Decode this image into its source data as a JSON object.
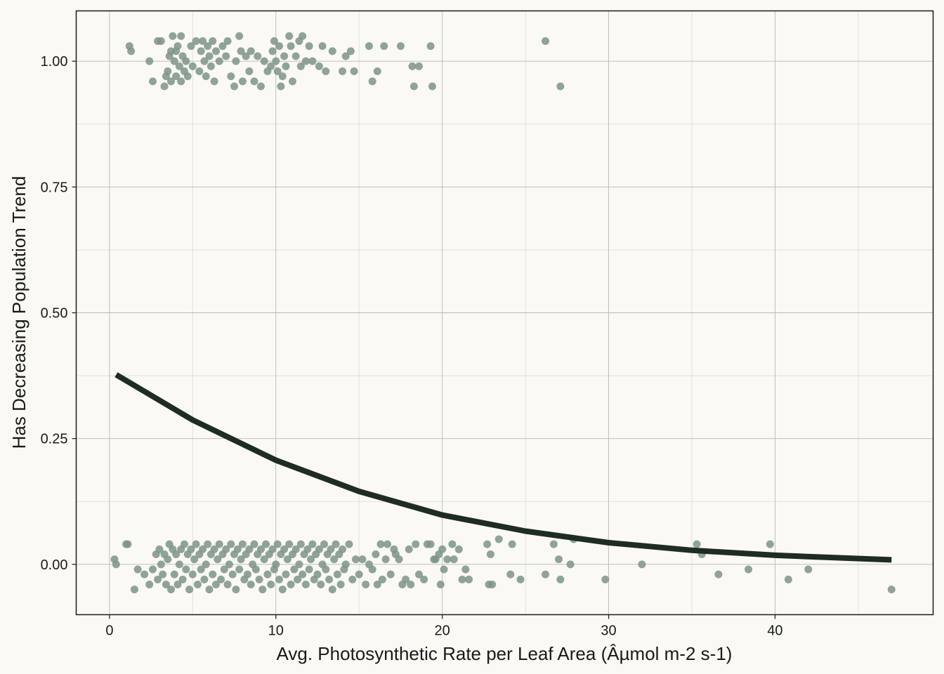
{
  "chart_data": {
    "type": "scatter",
    "title": "",
    "xlabel": "Avg. Photosynthetic Rate per Leaf Area (Âµmol m-2 s-1)",
    "ylabel": "Has Decreasing Population Trend",
    "xlim": [
      -2,
      49.5
    ],
    "ylim": [
      -0.1,
      1.1
    ],
    "x_ticks": [
      0,
      10,
      20,
      30,
      40
    ],
    "y_ticks": [
      0.0,
      0.25,
      0.5,
      0.75,
      1.0
    ],
    "x_tick_labels": [
      "0",
      "10",
      "20",
      "30",
      "40"
    ],
    "y_tick_labels": [
      "0.00",
      "0.25",
      "0.50",
      "0.75",
      "1.00"
    ],
    "grid": true,
    "legend": "none",
    "colors": {
      "background": "#faf9f4",
      "points": "#7d9486",
      "curve": "#1e2c22",
      "grid_major": "#b9b9b5",
      "grid_minor": "#dcdcd6",
      "frame": "#1a1a1a"
    },
    "points_y1": [
      [
        1.2,
        1.03
      ],
      [
        1.3,
        1.02
      ],
      [
        2.4,
        1.0
      ],
      [
        2.6,
        0.96
      ],
      [
        2.9,
        1.04
      ],
      [
        3.1,
        1.04
      ],
      [
        3.3,
        0.95
      ],
      [
        3.4,
        0.97
      ],
      [
        3.5,
        0.98
      ],
      [
        3.6,
        1.01
      ],
      [
        3.7,
        1.02
      ],
      [
        3.7,
        0.96
      ],
      [
        3.8,
        1.05
      ],
      [
        3.9,
        1.0
      ],
      [
        4.0,
        1.02
      ],
      [
        4.0,
        0.97
      ],
      [
        4.1,
        1.03
      ],
      [
        4.2,
        0.99
      ],
      [
        4.3,
        1.05
      ],
      [
        4.3,
        0.96
      ],
      [
        4.4,
        1.01
      ],
      [
        4.5,
        0.98
      ],
      [
        4.6,
        1.0
      ],
      [
        4.7,
        0.97
      ],
      [
        4.9,
        1.03
      ],
      [
        5.0,
        0.99
      ],
      [
        5.2,
        1.04
      ],
      [
        5.4,
        0.98
      ],
      [
        5.5,
        1.02
      ],
      [
        5.6,
        1.04
      ],
      [
        5.7,
        1.0
      ],
      [
        5.8,
        0.97
      ],
      [
        5.9,
        1.03
      ],
      [
        6.0,
        1.01
      ],
      [
        6.1,
        0.99
      ],
      [
        6.2,
        1.04
      ],
      [
        6.3,
        0.96
      ],
      [
        6.4,
        1.02
      ],
      [
        6.6,
        1.0
      ],
      [
        6.8,
        1.03
      ],
      [
        7.0,
        1.01
      ],
      [
        7.1,
        1.04
      ],
      [
        7.3,
        0.97
      ],
      [
        7.5,
        0.95
      ],
      [
        7.6,
        1.0
      ],
      [
        7.8,
        1.05
      ],
      [
        7.9,
        1.02
      ],
      [
        8.0,
        0.96
      ],
      [
        8.2,
        1.01
      ],
      [
        8.4,
        0.98
      ],
      [
        8.5,
        1.02
      ],
      [
        8.7,
        0.96
      ],
      [
        8.9,
        1.01
      ],
      [
        9.1,
        0.95
      ],
      [
        9.3,
        1.0
      ],
      [
        9.5,
        0.98
      ],
      [
        9.7,
        0.99
      ],
      [
        9.8,
        1.02
      ],
      [
        9.9,
        1.04
      ],
      [
        10.0,
        1.0
      ],
      [
        10.1,
        0.98
      ],
      [
        10.2,
        1.03
      ],
      [
        10.3,
        0.95
      ],
      [
        10.4,
        0.97
      ],
      [
        10.5,
        1.01
      ],
      [
        10.6,
        0.99
      ],
      [
        10.8,
        1.05
      ],
      [
        10.9,
        1.03
      ],
      [
        11.0,
        0.96
      ],
      [
        11.2,
        1.01
      ],
      [
        11.4,
        1.04
      ],
      [
        11.5,
        0.99
      ],
      [
        11.6,
        1.05
      ],
      [
        11.8,
        1.0
      ],
      [
        12.0,
        1.03
      ],
      [
        12.2,
        1.0
      ],
      [
        12.6,
        0.99
      ],
      [
        12.8,
        1.03
      ],
      [
        13.0,
        0.98
      ],
      [
        13.4,
        1.02
      ],
      [
        14.0,
        0.98
      ],
      [
        14.2,
        1.01
      ],
      [
        14.5,
        1.02
      ],
      [
        14.7,
        0.98
      ],
      [
        15.6,
        1.03
      ],
      [
        15.8,
        0.96
      ],
      [
        16.1,
        0.98
      ],
      [
        16.5,
        1.03
      ],
      [
        17.5,
        1.03
      ],
      [
        18.2,
        0.99
      ],
      [
        18.3,
        0.95
      ],
      [
        18.6,
        0.99
      ],
      [
        19.3,
        1.03
      ],
      [
        19.4,
        0.95
      ],
      [
        26.2,
        1.04
      ],
      [
        27.1,
        0.95
      ]
    ],
    "points_y0": [
      [
        0.3,
        0.01
      ],
      [
        0.4,
        0.0
      ],
      [
        1.0,
        0.04
      ],
      [
        1.1,
        0.04
      ],
      [
        1.5,
        -0.05
      ],
      [
        1.7,
        -0.01
      ],
      [
        2.1,
        -0.02
      ],
      [
        2.4,
        -0.04
      ],
      [
        2.6,
        -0.01
      ],
      [
        2.8,
        0.02
      ],
      [
        2.9,
        -0.03
      ],
      [
        3.0,
        0.03
      ],
      [
        3.1,
        0.0
      ],
      [
        3.2,
        -0.02
      ],
      [
        3.3,
        0.02
      ],
      [
        3.4,
        -0.04
      ],
      [
        3.5,
        0.01
      ],
      [
        3.6,
        0.04
      ],
      [
        3.7,
        -0.05
      ],
      [
        3.8,
        0.03
      ],
      [
        3.9,
        -0.02
      ],
      [
        4.0,
        0.02
      ],
      [
        4.1,
        -0.04
      ],
      [
        4.2,
        0.0
      ],
      [
        4.3,
        0.03
      ],
      [
        4.4,
        -0.03
      ],
      [
        4.5,
        0.04
      ],
      [
        4.6,
        -0.01
      ],
      [
        4.7,
        0.02
      ],
      [
        4.8,
        -0.05
      ],
      [
        4.9,
        0.03
      ],
      [
        5.0,
        -0.02
      ],
      [
        5.1,
        0.01
      ],
      [
        5.2,
        0.04
      ],
      [
        5.3,
        -0.04
      ],
      [
        5.4,
        0.02
      ],
      [
        5.5,
        -0.01
      ],
      [
        5.6,
        0.03
      ],
      [
        5.7,
        -0.03
      ],
      [
        5.8,
        0.0
      ],
      [
        5.9,
        0.04
      ],
      [
        6.0,
        -0.05
      ],
      [
        6.1,
        0.02
      ],
      [
        6.2,
        -0.02
      ],
      [
        6.3,
        0.03
      ],
      [
        6.4,
        -0.04
      ],
      [
        6.5,
        0.01
      ],
      [
        6.6,
        0.04
      ],
      [
        6.7,
        -0.03
      ],
      [
        6.8,
        0.02
      ],
      [
        6.9,
        -0.01
      ],
      [
        7.0,
        0.03
      ],
      [
        7.1,
        -0.04
      ],
      [
        7.2,
        0.0
      ],
      [
        7.3,
        0.04
      ],
      [
        7.4,
        -0.02
      ],
      [
        7.5,
        0.02
      ],
      [
        7.6,
        -0.05
      ],
      [
        7.7,
        0.03
      ],
      [
        7.8,
        -0.01
      ],
      [
        7.9,
        0.01
      ],
      [
        8.0,
        0.04
      ],
      [
        8.1,
        -0.03
      ],
      [
        8.2,
        0.02
      ],
      [
        8.3,
        -0.02
      ],
      [
        8.4,
        0.03
      ],
      [
        8.5,
        -0.04
      ],
      [
        8.6,
        0.0
      ],
      [
        8.7,
        0.04
      ],
      [
        8.8,
        -0.01
      ],
      [
        8.9,
        0.02
      ],
      [
        9.0,
        -0.03
      ],
      [
        9.1,
        0.03
      ],
      [
        9.2,
        -0.05
      ],
      [
        9.3,
        0.01
      ],
      [
        9.4,
        0.04
      ],
      [
        9.5,
        -0.02
      ],
      [
        9.6,
        0.02
      ],
      [
        9.7,
        -0.04
      ],
      [
        9.8,
        0.03
      ],
      [
        9.9,
        -0.01
      ],
      [
        10.0,
        0.0
      ],
      [
        10.1,
        0.04
      ],
      [
        10.2,
        -0.03
      ],
      [
        10.3,
        0.02
      ],
      [
        10.4,
        -0.05
      ],
      [
        10.5,
        0.03
      ],
      [
        10.6,
        -0.02
      ],
      [
        10.7,
        0.01
      ],
      [
        10.8,
        0.04
      ],
      [
        10.9,
        -0.04
      ],
      [
        11.0,
        0.02
      ],
      [
        11.1,
        -0.01
      ],
      [
        11.2,
        0.03
      ],
      [
        11.3,
        -0.03
      ],
      [
        11.4,
        0.0
      ],
      [
        11.5,
        0.04
      ],
      [
        11.6,
        -0.02
      ],
      [
        11.7,
        0.02
      ],
      [
        11.8,
        -0.04
      ],
      [
        11.9,
        0.03
      ],
      [
        12.0,
        -0.01
      ],
      [
        12.1,
        0.01
      ],
      [
        12.2,
        0.04
      ],
      [
        12.3,
        -0.03
      ],
      [
        12.4,
        0.02
      ],
      [
        12.5,
        -0.02
      ],
      [
        12.6,
        0.03
      ],
      [
        12.7,
        -0.04
      ],
      [
        12.8,
        0.0
      ],
      [
        12.9,
        0.04
      ],
      [
        13.0,
        -0.01
      ],
      [
        13.1,
        0.02
      ],
      [
        13.2,
        -0.03
      ],
      [
        13.3,
        0.03
      ],
      [
        13.4,
        -0.05
      ],
      [
        13.5,
        0.01
      ],
      [
        13.6,
        0.04
      ],
      [
        13.7,
        -0.02
      ],
      [
        13.8,
        0.02
      ],
      [
        13.9,
        -0.04
      ],
      [
        14.0,
        0.03
      ],
      [
        14.1,
        -0.01
      ],
      [
        14.2,
        0.0
      ],
      [
        14.4,
        0.04
      ],
      [
        14.6,
        -0.03
      ],
      [
        14.8,
        0.01
      ],
      [
        15.0,
        -0.02
      ],
      [
        15.2,
        0.01
      ],
      [
        15.4,
        -0.04
      ],
      [
        15.6,
        0.0
      ],
      [
        15.8,
        -0.01
      ],
      [
        16.0,
        0.02
      ],
      [
        16.1,
        -0.04
      ],
      [
        16.3,
        0.04
      ],
      [
        16.4,
        -0.03
      ],
      [
        16.6,
        0.01
      ],
      [
        16.7,
        0.04
      ],
      [
        16.9,
        -0.02
      ],
      [
        17.1,
        0.03
      ],
      [
        17.2,
        0.02
      ],
      [
        17.4,
        0.01
      ],
      [
        17.6,
        -0.04
      ],
      [
        17.8,
        -0.03
      ],
      [
        18.0,
        0.03
      ],
      [
        18.1,
        -0.04
      ],
      [
        18.4,
        0.04
      ],
      [
        18.6,
        -0.02
      ],
      [
        18.9,
        -0.03
      ],
      [
        19.1,
        0.04
      ],
      [
        19.3,
        0.04
      ],
      [
        19.5,
        0.01
      ],
      [
        19.6,
        0.01
      ],
      [
        19.8,
        0.02
      ],
      [
        19.9,
        -0.04
      ],
      [
        20.0,
        0.03
      ],
      [
        20.1,
        -0.01
      ],
      [
        20.3,
        0.01
      ],
      [
        20.6,
        0.04
      ],
      [
        20.7,
        0.01
      ],
      [
        21.0,
        0.03
      ],
      [
        21.2,
        -0.03
      ],
      [
        21.4,
        -0.01
      ],
      [
        21.6,
        -0.03
      ],
      [
        22.7,
        0.04
      ],
      [
        22.8,
        -0.04
      ],
      [
        22.9,
        0.02
      ],
      [
        23.0,
        -0.04
      ],
      [
        23.4,
        0.05
      ],
      [
        24.1,
        -0.02
      ],
      [
        24.2,
        0.04
      ],
      [
        24.7,
        -0.03
      ],
      [
        26.2,
        -0.02
      ],
      [
        26.7,
        0.04
      ],
      [
        27.0,
        0.01
      ],
      [
        27.1,
        -0.03
      ],
      [
        27.7,
        0.0
      ],
      [
        27.9,
        0.05
      ],
      [
        29.8,
        -0.03
      ],
      [
        32.0,
        0.0
      ],
      [
        35.3,
        0.04
      ],
      [
        35.6,
        0.02
      ],
      [
        36.6,
        -0.02
      ],
      [
        38.4,
        -0.01
      ],
      [
        39.7,
        0.04
      ],
      [
        40.8,
        -0.03
      ],
      [
        42.0,
        -0.01
      ],
      [
        47.0,
        -0.05
      ]
    ],
    "fit_curve": {
      "x": [
        0.4,
        5,
        10,
        15,
        20,
        25,
        30,
        35,
        40,
        47
      ],
      "y": [
        0.377,
        0.287,
        0.207,
        0.145,
        0.098,
        0.066,
        0.043,
        0.028,
        0.018,
        0.009
      ]
    }
  }
}
